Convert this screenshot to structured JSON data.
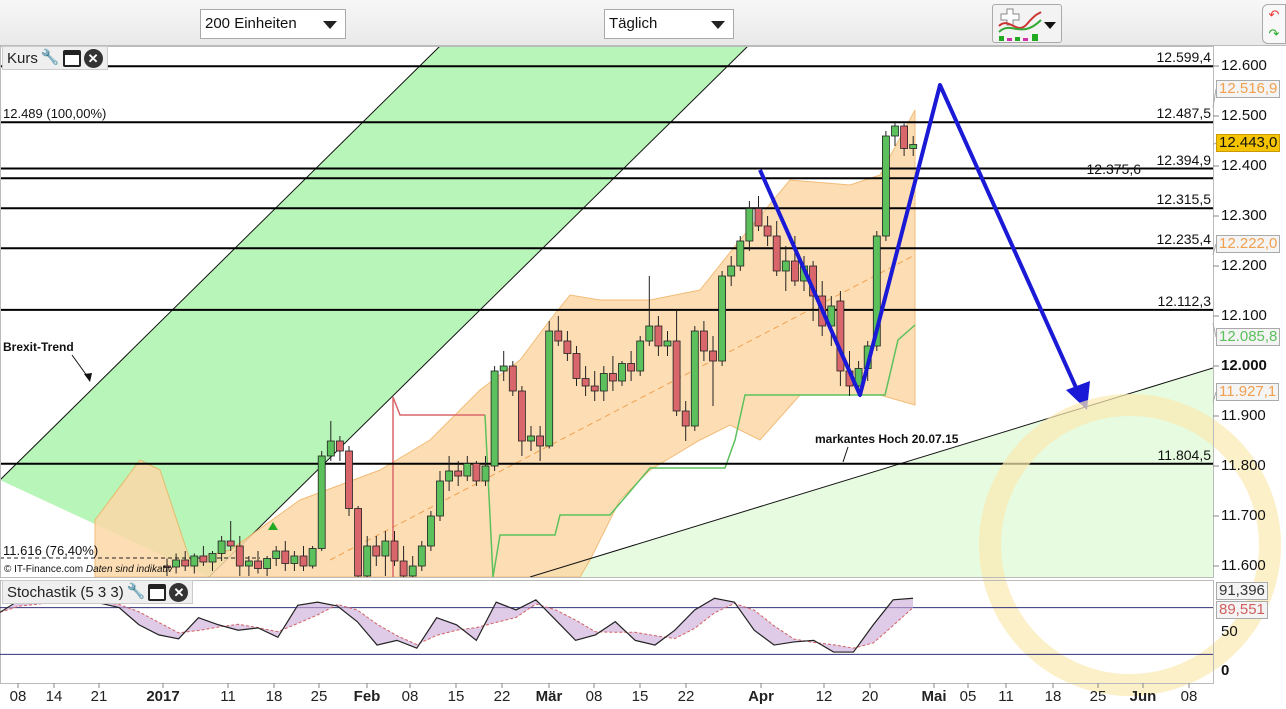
{
  "toolbar": {
    "units": "200 Einheiten",
    "interval": "Täglich",
    "indicator_icon": "chart-indicators-icon",
    "scroll_icon": "scroll-arrows-icon"
  },
  "price_panel": {
    "title": "Kurs",
    "copyright": "© IT-Finance.com",
    "disclaimer": "Daten sind indikativ"
  },
  "stoch_panel": {
    "title": "Stochastik (5 3 3)"
  },
  "annotations": {
    "brexit": "Brexit-Trend",
    "hoch": "markantes Hoch 20.07.15",
    "fib100": "12.489 (100,00%)",
    "fib764": "11.616 (76,40%)"
  },
  "colors": {
    "up": "#5cc05c",
    "down": "#d9666a",
    "channel": "#b8f5b8",
    "cloud": "#fdd9a8",
    "arrow": "#1a1ad6",
    "current": "#f5c400"
  },
  "chart_data": [
    {
      "type": "candlestick",
      "ylim": [
        11550,
        12650
      ],
      "y_ticks": [
        "12.600",
        "12.500",
        "12.400",
        "12.300",
        "12.200",
        "12.100",
        "12.000",
        "11.900",
        "11.800",
        "11.700",
        "11.600"
      ],
      "x_ticks": [
        "08",
        "14",
        "21",
        "2017",
        "11",
        "18",
        "25",
        "Feb",
        "08",
        "15",
        "22",
        "Mär",
        "08",
        "15",
        "22",
        "Apr",
        "12",
        "20",
        "Mai",
        "05",
        "11",
        "18",
        "25",
        "Jun",
        "08"
      ],
      "horizontal_levels": [
        "12.599,4",
        "12.487,5",
        "12.394,9",
        "12.375,6",
        "12.315,5",
        "12.235,4",
        "12.112,3",
        "11.804,5"
      ],
      "level_values": [
        12599.4,
        12487.5,
        12394.9,
        12375.6,
        12315.5,
        12235.4,
        12112.3,
        11804.5
      ],
      "price_markers": [
        {
          "label": "12.516,9",
          "color": "#f0a050"
        },
        {
          "label": "12.443,0",
          "color": "#111",
          "bg": "#f5c400"
        },
        {
          "label": "12.222,0",
          "color": "#f0a050"
        },
        {
          "label": "12.085,8",
          "color": "#5cc05c"
        },
        {
          "label": "11.927,1",
          "color": "#f0a050"
        }
      ],
      "marker_values": [
        12516.9,
        12443.0,
        12222.0,
        12085.8,
        11927.1
      ],
      "candles": [
        [
          "02.01",
          11600,
          11615,
          11580,
          11598
        ],
        [
          "03.01",
          11598,
          11625,
          11585,
          11612
        ],
        [
          "04.01",
          11612,
          11630,
          11590,
          11600
        ],
        [
          "05.01",
          11600,
          11625,
          11585,
          11620
        ],
        [
          "06.01",
          11620,
          11640,
          11600,
          11608
        ],
        [
          "09.01",
          11608,
          11630,
          11590,
          11625
        ],
        [
          "10.01",
          11625,
          11660,
          11610,
          11650
        ],
        [
          "11.01",
          11650,
          11690,
          11630,
          11640
        ],
        [
          "12.01",
          11640,
          11660,
          11580,
          11600
        ],
        [
          "13.01",
          11600,
          11620,
          11580,
          11610
        ],
        [
          "16.01",
          11610,
          11630,
          11585,
          11595
        ],
        [
          "17.01",
          11595,
          11620,
          11580,
          11615
        ],
        [
          "18.01",
          11615,
          11640,
          11600,
          11630
        ],
        [
          "19.01",
          11630,
          11650,
          11590,
          11605
        ],
        [
          "20.01",
          11605,
          11630,
          11590,
          11620
        ],
        [
          "23.01",
          11620,
          11640,
          11590,
          11600
        ],
        [
          "24.01",
          11600,
          11640,
          11595,
          11635
        ],
        [
          "25.01",
          11635,
          11830,
          11630,
          11820
        ],
        [
          "26.01",
          11820,
          11890,
          11810,
          11850
        ],
        [
          "27.01",
          11850,
          11860,
          11810,
          11830
        ],
        [
          "30.01",
          11830,
          11840,
          11700,
          11715
        ],
        [
          "31.01",
          11715,
          11720,
          11560,
          11580
        ],
        [
          "01.02",
          11580,
          11660,
          11560,
          11640
        ],
        [
          "02.02",
          11640,
          11660,
          11600,
          11620
        ],
        [
          "03.02",
          11620,
          11670,
          11580,
          11650
        ],
        [
          "06.02",
          11650,
          11670,
          11600,
          11610
        ],
        [
          "07.02",
          11610,
          11640,
          11560,
          11580
        ],
        [
          "08.02",
          11580,
          11620,
          11560,
          11600
        ],
        [
          "09.02",
          11600,
          11650,
          11590,
          11640
        ],
        [
          "10.02",
          11640,
          11710,
          11630,
          11700
        ],
        [
          "13.02",
          11700,
          11790,
          11690,
          11770
        ],
        [
          "14.02",
          11770,
          11820,
          11750,
          11790
        ],
        [
          "15.02",
          11790,
          11810,
          11760,
          11780
        ],
        [
          "16.02",
          11780,
          11820,
          11770,
          11805
        ],
        [
          "17.02",
          11805,
          11810,
          11760,
          11770
        ],
        [
          "20.02",
          11770,
          11820,
          11760,
          11800
        ],
        [
          "21.02",
          11800,
          12000,
          11790,
          11990
        ],
        [
          "22.02",
          11990,
          12030,
          11970,
          12000
        ],
        [
          "23.02",
          12000,
          12010,
          11940,
          11950
        ],
        [
          "24.02",
          11950,
          11960,
          11820,
          11850
        ],
        [
          "27.02",
          11850,
          11880,
          11830,
          11860
        ],
        [
          "28.02",
          11860,
          11880,
          11810,
          11840
        ],
        [
          "01.03",
          11840,
          12090,
          11835,
          12070
        ],
        [
          "02.03",
          12070,
          12100,
          12040,
          12050
        ],
        [
          "03.03",
          12050,
          12070,
          12010,
          12025
        ],
        [
          "06.03",
          12025,
          12040,
          11960,
          11975
        ],
        [
          "07.03",
          11975,
          12000,
          11940,
          11960
        ],
        [
          "08.03",
          11960,
          11990,
          11930,
          11950
        ],
        [
          "09.03",
          11950,
          12000,
          11930,
          11985
        ],
        [
          "10.03",
          11985,
          12020,
          11950,
          11970
        ],
        [
          "13.03",
          11970,
          12010,
          11960,
          12005
        ],
        [
          "14.03",
          12005,
          12030,
          11970,
          11990
        ],
        [
          "15.03",
          11990,
          12060,
          11980,
          12050
        ],
        [
          "16.03",
          12050,
          12180,
          12040,
          12080
        ],
        [
          "17.03",
          12080,
          12100,
          12020,
          12040
        ],
        [
          "20.03",
          12040,
          12070,
          12020,
          12050
        ],
        [
          "21.03",
          12050,
          12110,
          11900,
          11910
        ],
        [
          "22.03",
          11910,
          11930,
          11850,
          11880
        ],
        [
          "23.03",
          11880,
          12080,
          11870,
          12070
        ],
        [
          "24.03",
          12070,
          12090,
          12010,
          12030
        ],
        [
          "27.03",
          12030,
          12060,
          11920,
          12010
        ],
        [
          "28.03",
          12010,
          12190,
          12000,
          12180
        ],
        [
          "29.03",
          12180,
          12220,
          12160,
          12200
        ],
        [
          "30.03",
          12200,
          12260,
          12190,
          12250
        ],
        [
          "31.03",
          12250,
          12330,
          12230,
          12315
        ],
        [
          "03.04",
          12315,
          12340,
          12270,
          12280
        ],
        [
          "04.04",
          12280,
          12300,
          12240,
          12260
        ],
        [
          "05.04",
          12260,
          12290,
          12180,
          12190
        ],
        [
          "06.04",
          12190,
          12240,
          12150,
          12210
        ],
        [
          "07.04",
          12210,
          12260,
          12160,
          12170
        ],
        [
          "10.04",
          12170,
          12220,
          12150,
          12200
        ],
        [
          "11.04",
          12200,
          12210,
          12090,
          12140
        ],
        [
          "12.04",
          12140,
          12170,
          12060,
          12080
        ],
        [
          "13.04",
          12080,
          12140,
          12040,
          12120
        ],
        [
          "18.04",
          12130,
          12150,
          11960,
          11990
        ],
        [
          "19.04",
          11990,
          12030,
          11940,
          11960
        ],
        [
          "20.04",
          11960,
          12010,
          11940,
          11995
        ],
        [
          "21.04",
          11995,
          12050,
          11970,
          12040
        ],
        [
          "24.04",
          12040,
          12270,
          12030,
          12260
        ],
        [
          "25.04",
          12260,
          12470,
          12250,
          12460
        ],
        [
          "26.04",
          12460,
          12490,
          12440,
          12480
        ],
        [
          "27.04",
          12480,
          12485,
          12420,
          12435
        ],
        [
          "28.04",
          12435,
          12460,
          12420,
          12443
        ]
      ]
    },
    {
      "type": "line",
      "title": "Stochastik (5 3 3)",
      "ylim": [
        0,
        100
      ],
      "y_ticks": [
        "50",
        "0"
      ],
      "levels": [
        80,
        20
      ],
      "markers": [
        {
          "label": "91,396",
          "color": "#333"
        },
        {
          "label": "89,551",
          "color": "#d06060"
        }
      ],
      "k": [
        74,
        90,
        90,
        90,
        86,
        86,
        80,
        58,
        45,
        40,
        67,
        58,
        51,
        54,
        42,
        83,
        87,
        82,
        62,
        32,
        38,
        28,
        67,
        58,
        38,
        87,
        77,
        90,
        64,
        38,
        45,
        62,
        38,
        32,
        51,
        77,
        92,
        87,
        51,
        32,
        36,
        38,
        23,
        23,
        58,
        90,
        92
      ]
    }
  ]
}
